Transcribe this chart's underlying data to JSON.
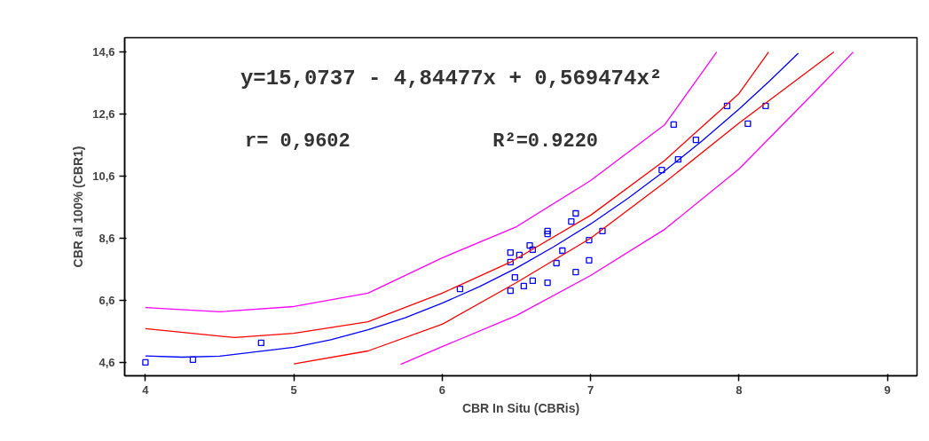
{
  "chart_data": {
    "type": "scatter",
    "xlabel": "CBR In Situ (CBRis)",
    "ylabel": "CBR al 100% (CBR1)",
    "annotations": [
      "y=15,0737 - 4,84477x + 0,569474x²",
      "r= 0,9602",
      "R²=0.9220"
    ],
    "xlim": [
      3.86,
      9.2
    ],
    "ylim": [
      4.17,
      15.06
    ],
    "xticks": [
      4,
      5,
      6,
      7,
      8,
      9
    ],
    "yticks": [
      {
        "value": 4.6,
        "label": "4,6"
      },
      {
        "value": 6.6,
        "label": "6,6"
      },
      {
        "value": 8.6,
        "label": "8,6"
      },
      {
        "value": 10.6,
        "label": "10,6"
      },
      {
        "value": 12.6,
        "label": "12,6"
      },
      {
        "value": 14.6,
        "label": "14,6"
      }
    ],
    "grid": false,
    "series": [
      {
        "marker": "square",
        "color": "#0000ff",
        "x": [
          4.0,
          4.32,
          4.78,
          6.12,
          6.46,
          6.46,
          6.46,
          6.49,
          6.55,
          6.52,
          6.59,
          6.61,
          6.61,
          6.71,
          6.71,
          6.71,
          6.77,
          6.81,
          6.87,
          6.9,
          6.9,
          6.99,
          6.99,
          7.08,
          7.48,
          7.56,
          7.59,
          7.71,
          7.92,
          8.06,
          8.18
        ],
        "values": [
          4.6,
          4.69,
          5.23,
          6.97,
          6.91,
          7.83,
          8.14,
          7.34,
          7.06,
          8.06,
          8.37,
          8.23,
          7.23,
          7.17,
          8.74,
          8.83,
          7.8,
          8.2,
          9.14,
          9.4,
          7.51,
          8.54,
          7.89,
          8.83,
          10.8,
          12.26,
          11.14,
          11.77,
          12.86,
          12.29,
          12.86
        ]
      },
      {
        "type": "line",
        "color": "#0000ff",
        "x": [
          4.0,
          4.25,
          4.5,
          5.0,
          5.25,
          5.5,
          5.75,
          6.0,
          6.25,
          6.5,
          6.75,
          7.0,
          7.25,
          7.5,
          7.75,
          8.0,
          8.2,
          8.4
        ],
        "values": [
          4.81,
          4.77,
          4.8,
          5.09,
          5.33,
          5.65,
          6.04,
          6.51,
          7.04,
          7.64,
          8.32,
          9.06,
          9.88,
          10.77,
          11.73,
          12.76,
          13.64,
          14.56
        ]
      },
      {
        "type": "line",
        "color": "#ff0000",
        "x": [
          4.0,
          4.6,
          5.0,
          5.5,
          6.0,
          6.46,
          7.0,
          7.5,
          8.0,
          8.2
        ],
        "values": [
          5.69,
          5.4,
          5.54,
          5.91,
          6.83,
          7.83,
          9.34,
          11.11,
          13.26,
          14.6
        ]
      },
      {
        "type": "line",
        "color": "#ff0000",
        "x": [
          5.0,
          5.5,
          6.0,
          6.5,
          7.0,
          7.5,
          8.0,
          8.64
        ],
        "values": [
          4.55,
          4.97,
          5.83,
          7.17,
          8.6,
          10.4,
          12.31,
          14.6
        ]
      },
      {
        "type": "line",
        "color": "#ff00ff",
        "x": [
          4.0,
          4.5,
          5.0,
          5.5,
          6.0,
          6.5,
          7.0,
          7.5,
          7.85
        ],
        "values": [
          6.37,
          6.23,
          6.4,
          6.83,
          7.97,
          8.97,
          10.46,
          12.26,
          14.6
        ]
      },
      {
        "type": "line",
        "color": "#ff00ff",
        "x": [
          5.72,
          6.0,
          6.5,
          7.0,
          7.5,
          8.0,
          8.5,
          8.77
        ],
        "values": [
          4.54,
          5.11,
          6.11,
          7.4,
          8.89,
          10.83,
          13.26,
          14.6
        ]
      }
    ]
  }
}
